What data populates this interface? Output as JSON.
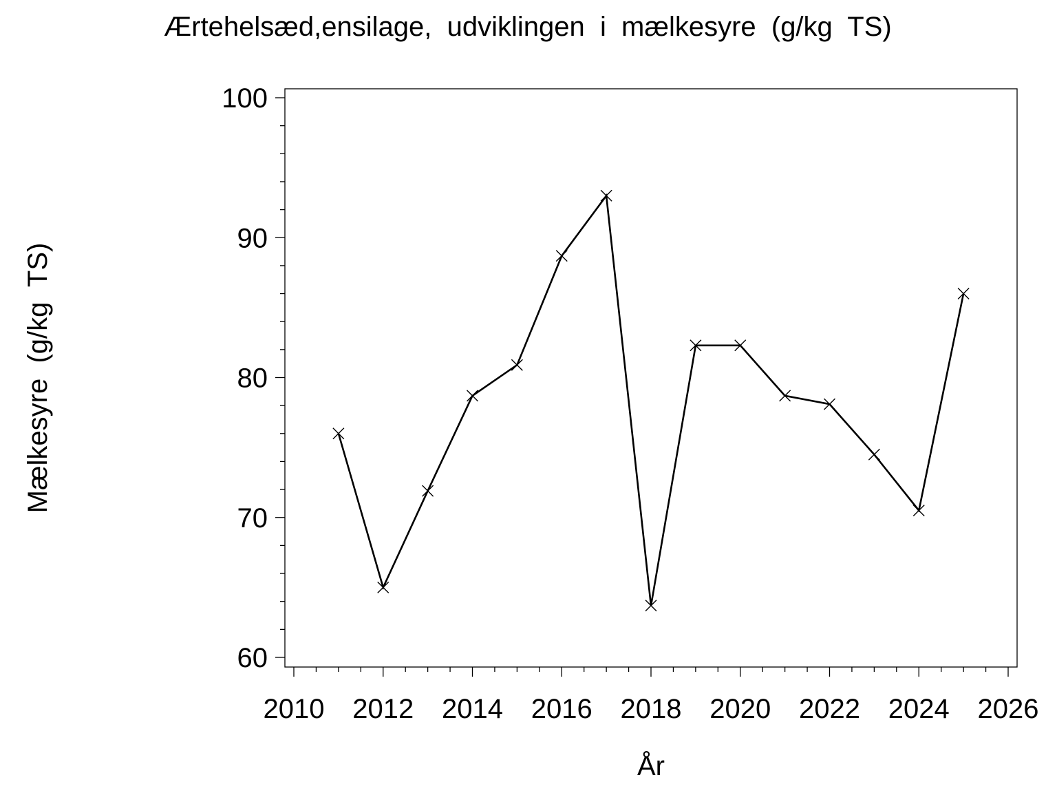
{
  "chart_data": {
    "type": "line",
    "title": "Ærtehelsæd,ensilage,  udviklingen  i  mælkesyre  (g/kg  TS)",
    "xlabel": "År",
    "ylabel": "Mælkesyre  (g/kg  TS)",
    "xlim": [
      2010,
      2026
    ],
    "ylim": [
      60,
      100
    ],
    "xticks": [
      2010,
      2012,
      2014,
      2016,
      2018,
      2020,
      2022,
      2024,
      2026
    ],
    "yticks": [
      60,
      70,
      80,
      90,
      100
    ],
    "grid": false,
    "marker": "x",
    "line_color": "#000000",
    "series": [
      {
        "x": [
          2011,
          2012,
          2013,
          2014,
          2015,
          2016,
          2017,
          2018,
          2019,
          2020,
          2021,
          2022,
          2023,
          2024,
          2025
        ],
        "values": [
          76.0,
          65.0,
          71.9,
          78.7,
          80.9,
          88.7,
          93.0,
          63.7,
          82.3,
          82.3,
          78.7,
          78.1,
          74.5,
          70.5,
          86.0
        ]
      }
    ]
  }
}
